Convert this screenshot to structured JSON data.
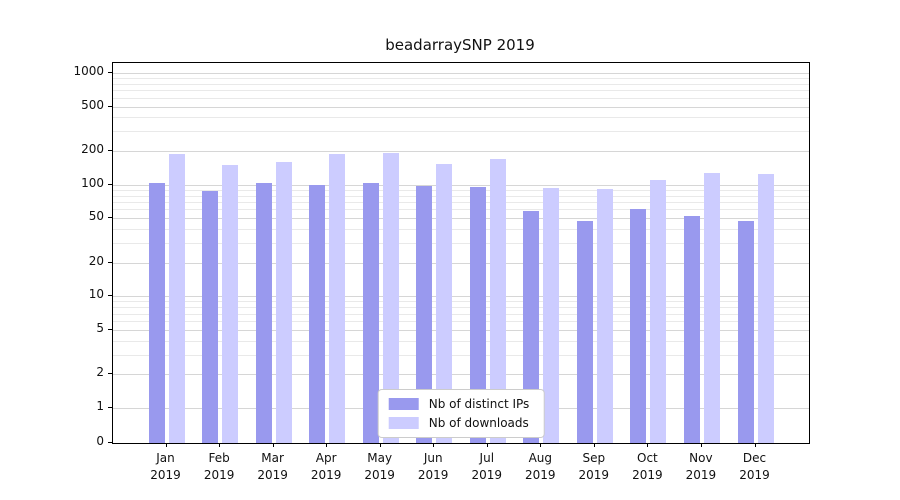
{
  "title": "beadarraySNP 2019",
  "chart_data": {
    "type": "bar",
    "title": "beadarraySNP 2019",
    "yscale": "log",
    "grid": true,
    "legend_position": "lower center inside",
    "categories": [
      "Jan 2019",
      "Feb 2019",
      "Mar 2019",
      "Apr 2019",
      "May 2019",
      "Jun 2019",
      "Jul 2019",
      "Aug 2019",
      "Sep 2019",
      "Oct 2019",
      "Nov 2019",
      "Dec 2019"
    ],
    "yticks": [
      0,
      1,
      2,
      5,
      10,
      20,
      50,
      100,
      200,
      500,
      1000
    ],
    "minor_yticks": [
      3,
      4,
      6,
      7,
      8,
      9,
      30,
      40,
      60,
      70,
      80,
      90,
      300,
      400,
      600,
      700,
      800,
      900
    ],
    "ylim": [
      0,
      1000
    ],
    "series": [
      {
        "name": "Nb of distinct IPs",
        "color": "#9999ee",
        "values": [
          104,
          88,
          103,
          100,
          104,
          98,
          95,
          58,
          47,
          60,
          52,
          47
        ]
      },
      {
        "name": "Nb of downloads",
        "color": "#ccccff",
        "values": [
          190,
          150,
          160,
          188,
          193,
          152,
          170,
          94,
          92,
          110,
          128,
          125
        ]
      }
    ]
  },
  "colors": {
    "grid_major": "#d6d6d6",
    "grid_minor": "#e9e9e9",
    "axis": "#000000",
    "background": "#ffffff"
  }
}
